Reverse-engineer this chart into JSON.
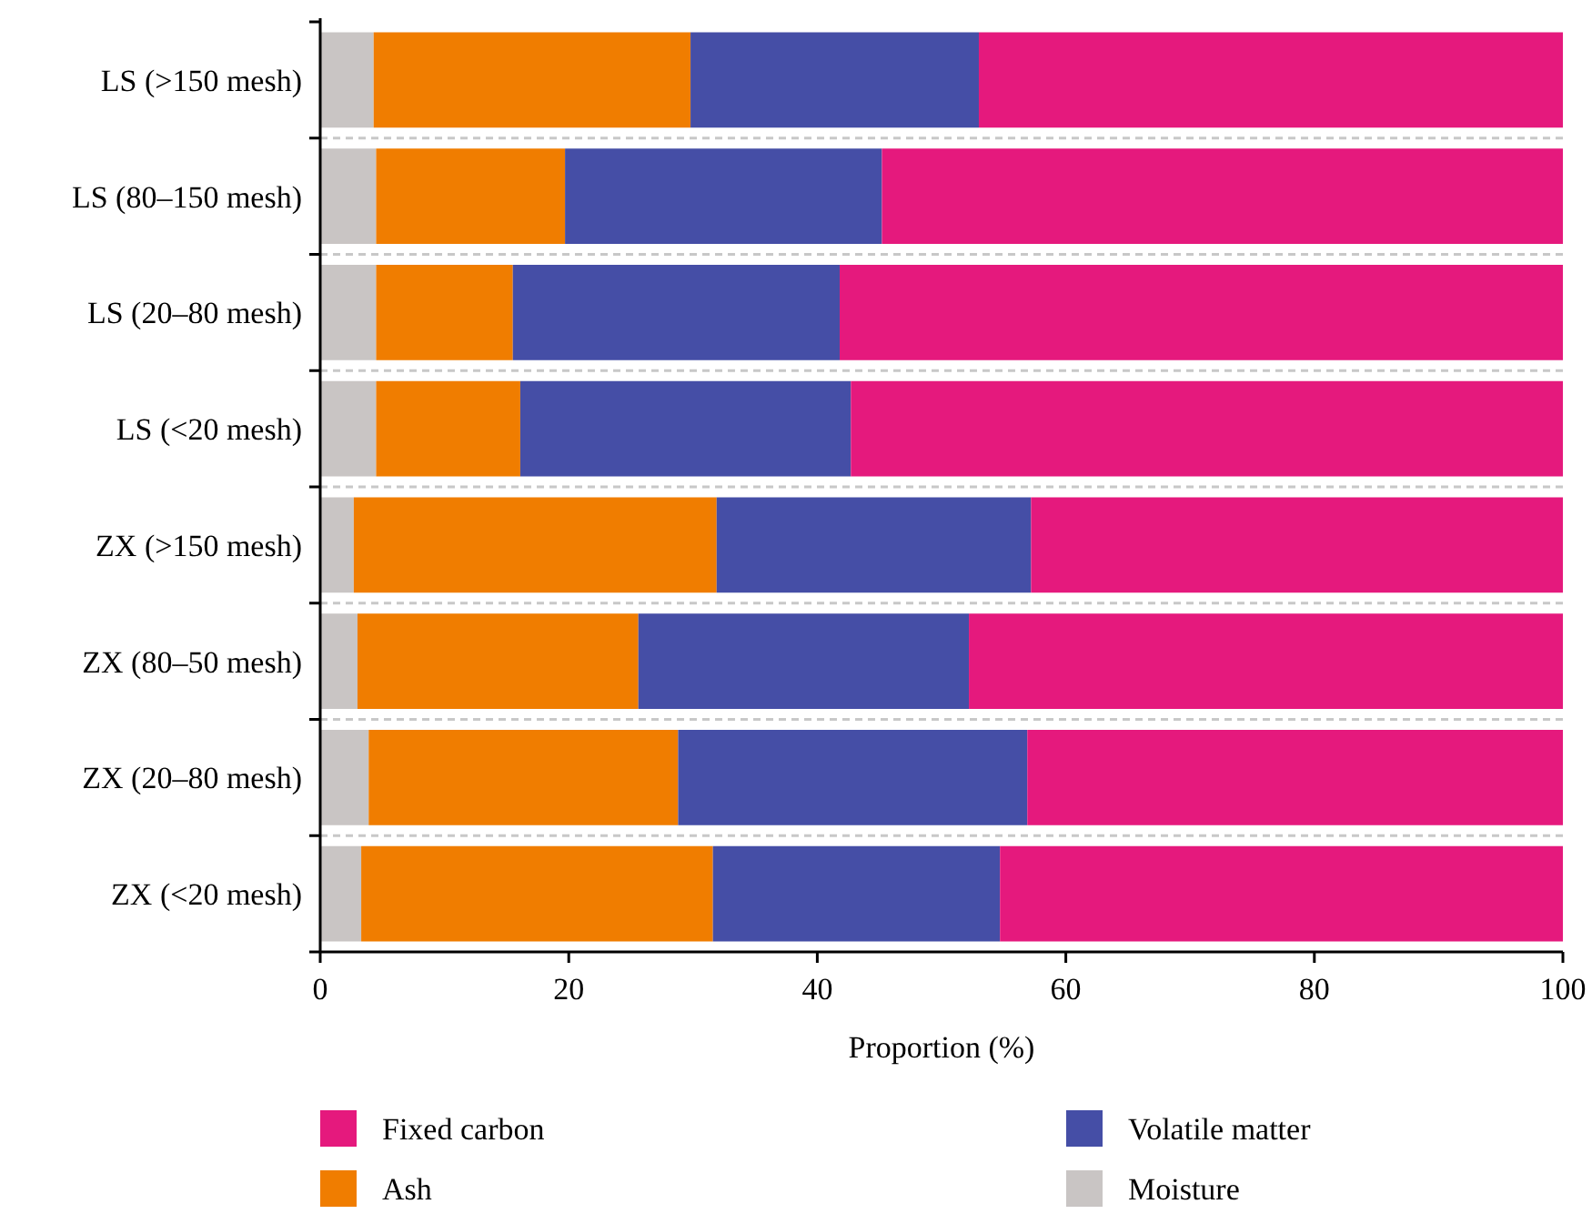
{
  "chart_data": {
    "type": "bar",
    "orientation": "horizontal",
    "stacked": true,
    "categories": [
      "LS (>150 mesh)",
      "LS (80–150 mesh)",
      "LS (20–80 mesh)",
      "LS (<20 mesh)",
      "ZX (>150 mesh)",
      "ZX (80–50 mesh)",
      "ZX (20–80 mesh)",
      "ZX (<20 mesh)"
    ],
    "series": [
      {
        "name": "Moisture",
        "color": "#c9c5c4",
        "values": [
          4.3,
          4.5,
          4.5,
          4.5,
          2.7,
          3.0,
          3.9,
          3.3
        ]
      },
      {
        "name": "Ash",
        "color": "#f07d00",
        "values": [
          25.5,
          15.2,
          11.0,
          11.6,
          29.2,
          22.6,
          24.9,
          28.3
        ]
      },
      {
        "name": "Volatile matter",
        "color": "#454ea6",
        "values": [
          23.2,
          25.5,
          26.3,
          26.6,
          25.3,
          26.6,
          28.1,
          23.1
        ]
      },
      {
        "name": "Fixed carbon",
        "color": "#e5197d",
        "values": [
          47.0,
          54.8,
          58.2,
          57.3,
          42.8,
          47.8,
          43.1,
          45.3
        ]
      }
    ],
    "xlabel": "Proportion (%)",
    "xlim": [
      0,
      100
    ],
    "xticks": [
      0,
      20,
      40,
      60,
      80,
      100
    ],
    "grid": "y",
    "legend": "bottom"
  }
}
